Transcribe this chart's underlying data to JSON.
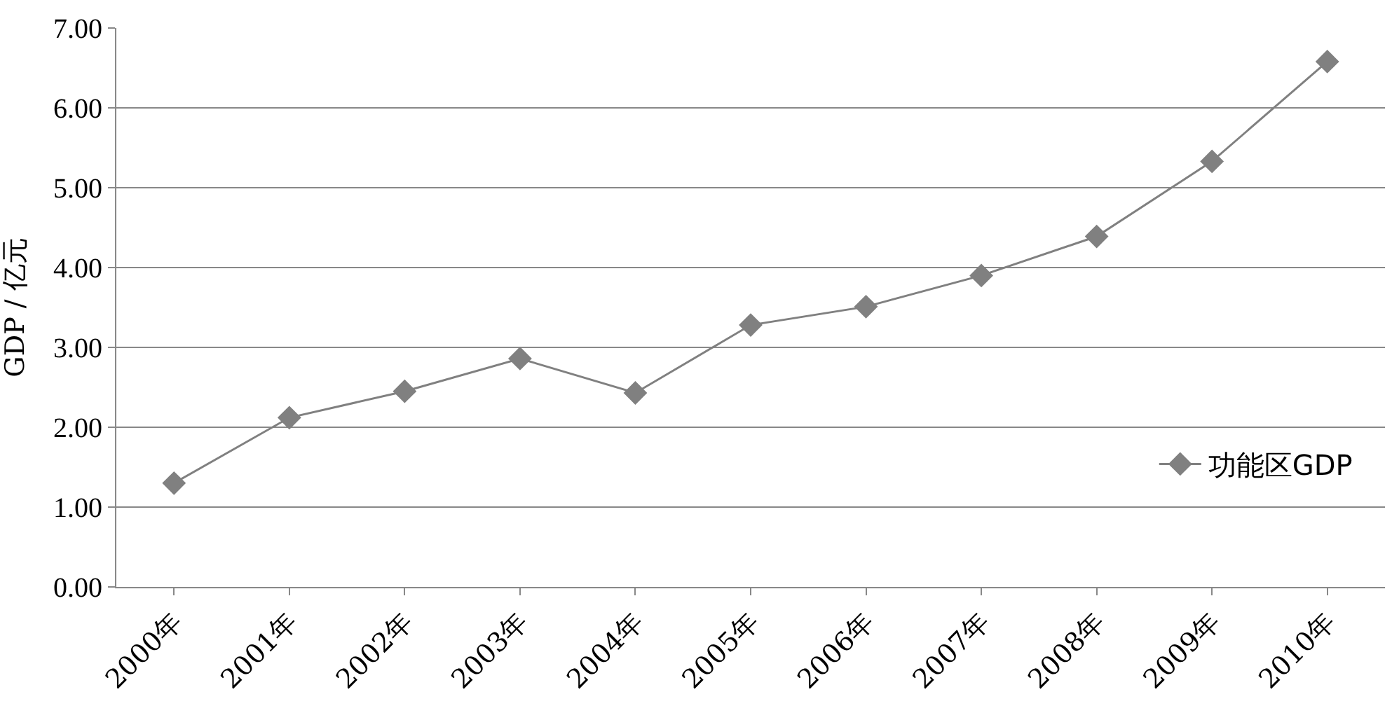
{
  "chart_data": {
    "type": "line",
    "ylabel": "GDP / 亿元",
    "categories": [
      "2000年",
      "2001年",
      "2002年",
      "2003年",
      "2004年",
      "2005年",
      "2006年",
      "2007年",
      "2008年",
      "2009年",
      "2010年"
    ],
    "series": [
      {
        "name": "功能区GDP",
        "color": "#808080",
        "values": [
          1.3,
          2.12,
          2.45,
          2.86,
          2.43,
          3.28,
          3.51,
          3.9,
          4.39,
          5.33,
          6.58
        ]
      }
    ],
    "ylim": [
      0,
      7
    ],
    "yticks": [
      {
        "value": 0,
        "label": "0.00"
      },
      {
        "value": 1,
        "label": "1.00"
      },
      {
        "value": 2,
        "label": "2.00"
      },
      {
        "value": 3,
        "label": "3.00"
      },
      {
        "value": 4,
        "label": "4.00"
      },
      {
        "value": 5,
        "label": "5.00"
      },
      {
        "value": 6,
        "label": "6.00"
      },
      {
        "value": 7,
        "label": "7.00"
      }
    ],
    "grid": "y",
    "legend": "right",
    "marker": "diamond",
    "line_style": "solid"
  }
}
